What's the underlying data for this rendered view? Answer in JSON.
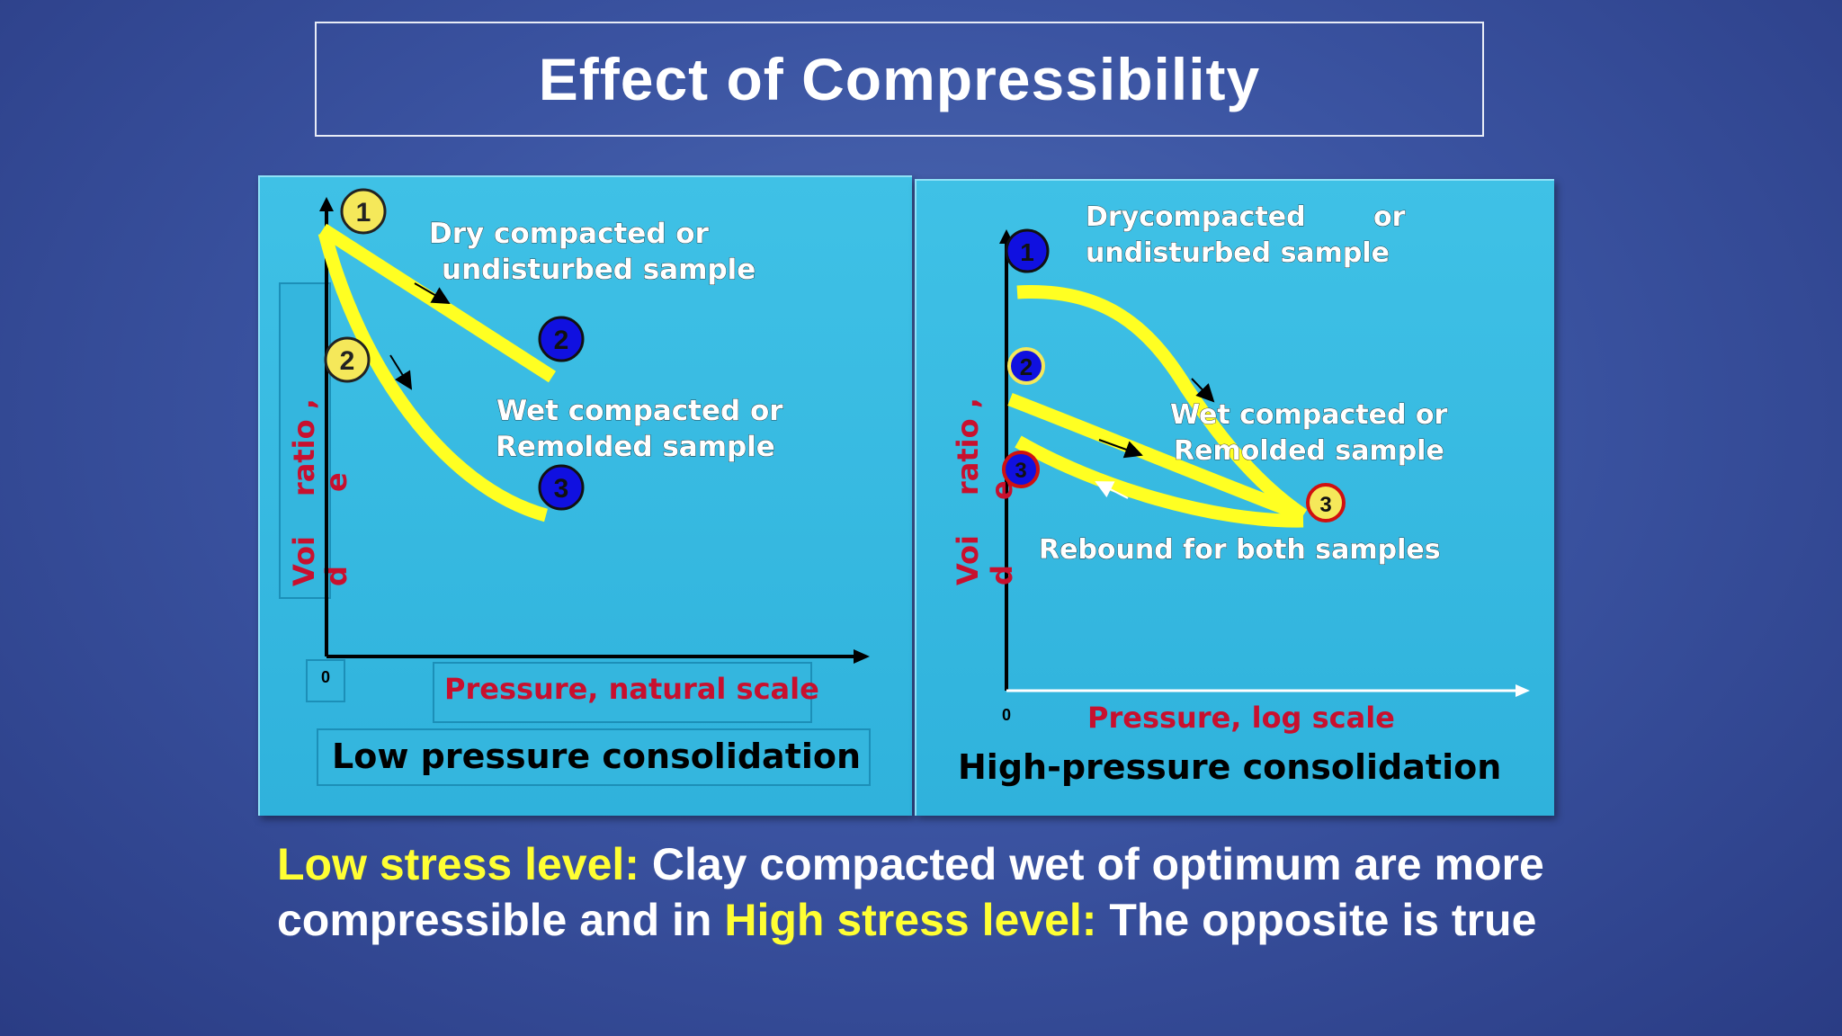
{
  "slide": {
    "title": "Effect of Compressibility"
  },
  "left_panel": {
    "curve1_label_line1": "Dry compacted or",
    "curve1_label_line2": "undisturbed sample",
    "curve2_label_line1": "Wet compacted or",
    "curve2_label_line2": "Remolded sample",
    "y_axis_label_a": "Voi",
    "y_axis_label_b": "ratio ,",
    "y_axis_label_c": "d",
    "y_axis_label_d": "e",
    "origin_label": "0",
    "x_axis_label": "Pressure, natural scale",
    "caption": "Low pressure consolidation",
    "markers": [
      "1",
      "2",
      "2",
      "3"
    ]
  },
  "right_panel": {
    "curve1_label_line1": "Drycompacted",
    "curve1_label_or": "or",
    "curve1_label_line2": "undisturbed sample",
    "curve2_label_line1": "Wet compacted or",
    "curve2_label_line2": "Remolded sample",
    "rebound_label": "Rebound for both samples",
    "y_axis_label_a": "Voi",
    "y_axis_label_b": "ratio ,",
    "y_axis_label_c": "d",
    "y_axis_label_d": "e",
    "origin_label": "0",
    "x_axis_label": "Pressure, log scale",
    "caption": "High-pressure consolidation",
    "markers": [
      "1",
      "2",
      "3",
      "3"
    ]
  },
  "footer": {
    "low_label": "Low stress level:",
    "low_text": " Clay compacted wet of optimum are more compressible and in ",
    "high_label": "High stress level:",
    "high_text": " The opposite is true"
  },
  "colors": {
    "curve": "#ffff22",
    "axis_label": "#c8102e",
    "marker_yellow": "#f5e85a",
    "marker_blue": "#1010e0"
  }
}
